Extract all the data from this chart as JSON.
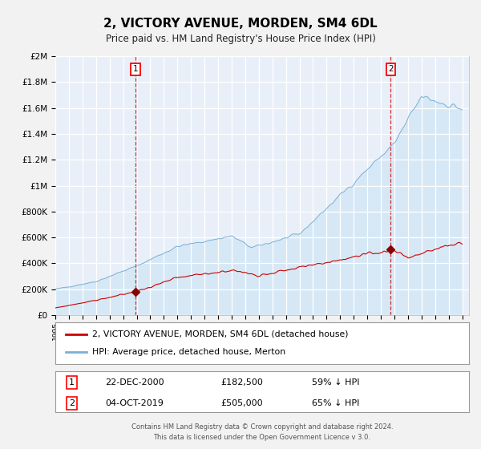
{
  "title": "2, VICTORY AVENUE, MORDEN, SM4 6DL",
  "subtitle": "Price paid vs. HM Land Registry's House Price Index (HPI)",
  "ylim": [
    0,
    2000000
  ],
  "yticks": [
    0,
    200000,
    400000,
    600000,
    800000,
    1000000,
    1200000,
    1400000,
    1600000,
    1800000,
    2000000
  ],
  "ytick_labels": [
    "£0",
    "£200K",
    "£400K",
    "£600K",
    "£800K",
    "£1M",
    "£1.2M",
    "£1.4M",
    "£1.6M",
    "£1.8M",
    "£2M"
  ],
  "xlim_start": 1995.0,
  "xlim_end": 2025.5,
  "hpi_color": "#7bafd4",
  "hpi_fill_color": "#d6e8f5",
  "property_color": "#cc0000",
  "marker_color": "#8b0000",
  "vline_color": "#cc0000",
  "sale1_year": 2000.97,
  "sale1_price": 182500,
  "sale2_year": 2019.75,
  "sale2_price": 505000,
  "legend_property": "2, VICTORY AVENUE, MORDEN, SM4 6DL (detached house)",
  "legend_hpi": "HPI: Average price, detached house, Merton",
  "annotation1_num": "1",
  "annotation1_date": "22-DEC-2000",
  "annotation1_price": "£182,500",
  "annotation1_rel": "59% ↓ HPI",
  "annotation2_num": "2",
  "annotation2_date": "04-OCT-2019",
  "annotation2_price": "£505,000",
  "annotation2_rel": "65% ↓ HPI",
  "footer1": "Contains HM Land Registry data © Crown copyright and database right 2024.",
  "footer2": "This data is licensed under the Open Government Licence v 3.0.",
  "plot_bg_color": "#e8eff8",
  "grid_color": "#ffffff",
  "fig_bg_color": "#f2f2f2"
}
